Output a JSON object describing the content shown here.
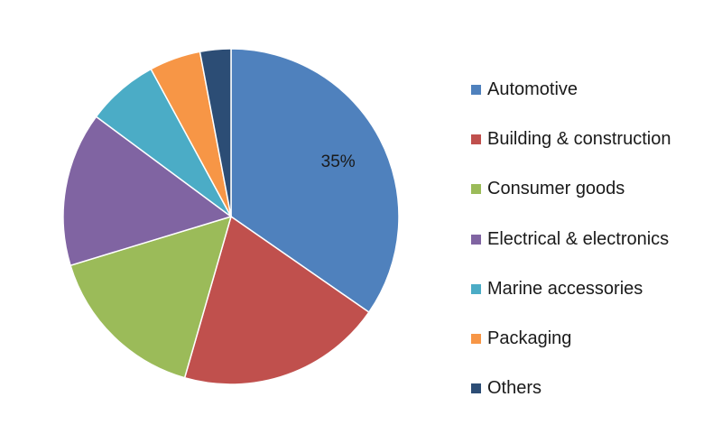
{
  "chart_data": {
    "type": "pie",
    "categories": [
      "Automotive",
      "Building & construction",
      "Consumer goods",
      "Electrical & electronics",
      "Marine accessories",
      "Packaging",
      "Others"
    ],
    "values": [
      35,
      20,
      16,
      15,
      7,
      5,
      3
    ],
    "colors": [
      "#4f81bd",
      "#c0504d",
      "#9bbb59",
      "#8064a2",
      "#4bacc6",
      "#f79646",
      "#2c4d75"
    ],
    "data_labels": [
      "35%",
      "",
      "",
      "",
      "",
      "",
      ""
    ],
    "start_angle_deg": 0,
    "direction": "clockwise",
    "legend_position": "right"
  }
}
